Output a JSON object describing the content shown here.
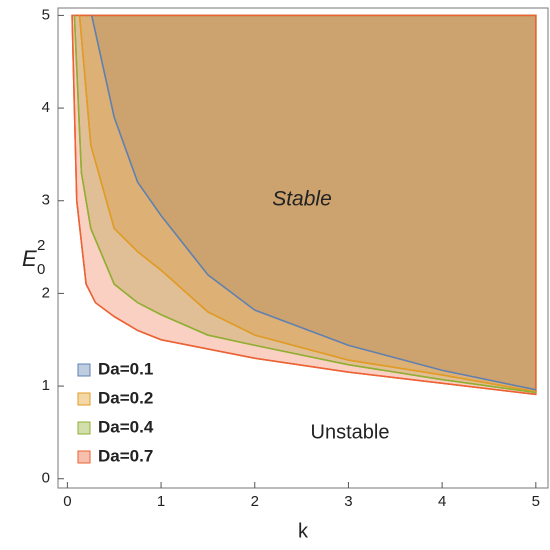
{
  "chart_data": {
    "type": "region",
    "xlabel": "k",
    "ylabel": {
      "text": "E",
      "subscript": "0",
      "superscript": "2"
    },
    "annotations": [
      "Stable",
      "Unstable"
    ],
    "xlim": [
      -0.1,
      5.13
    ],
    "ylim": [
      -0.1,
      5.08
    ],
    "xticks": [
      0,
      1,
      2,
      3,
      4,
      5
    ],
    "yticks": [
      0,
      1,
      2,
      3,
      4,
      5
    ],
    "region_top": 5,
    "region_right": 5,
    "series": [
      {
        "name": "Da=0.1",
        "color": "#5e81b5",
        "legend_color": "#1e22e0",
        "x": [
          0.26,
          0.5,
          0.75,
          1,
          1.5,
          2,
          3,
          4,
          5
        ],
        "values": [
          5,
          3.9,
          3.2,
          2.84,
          2.2,
          1.82,
          1.44,
          1.17,
          0.96
        ]
      },
      {
        "name": "Da=0.2",
        "color": "#e19c24",
        "legend_color": "#e69a1a",
        "x": [
          0.13,
          0.25,
          0.5,
          0.75,
          1,
          1.5,
          2,
          3,
          4,
          5
        ],
        "values": [
          5,
          3.6,
          2.7,
          2.45,
          2.25,
          1.8,
          1.55,
          1.28,
          1.12,
          0.94
        ]
      },
      {
        "name": "Da=0.4",
        "color": "#8fb032",
        "legend_color": "#3ccc3c",
        "x": [
          0.075,
          0.15,
          0.25,
          0.5,
          0.75,
          1,
          1.5,
          2,
          3,
          4,
          5
        ],
        "values": [
          5,
          3.3,
          2.7,
          2.1,
          1.9,
          1.77,
          1.55,
          1.44,
          1.23,
          1.07,
          0.93
        ]
      },
      {
        "name": "Da=0.7",
        "color": "#eb6235",
        "legend_color": "#cc2a2a",
        "x": [
          0.05,
          0.1,
          0.2,
          0.3,
          0.5,
          0.75,
          1,
          1.5,
          2,
          3,
          4,
          5
        ],
        "values": [
          5,
          3.0,
          2.1,
          1.9,
          1.75,
          1.6,
          1.5,
          1.4,
          1.3,
          1.15,
          1.03,
          0.91
        ]
      }
    ]
  }
}
